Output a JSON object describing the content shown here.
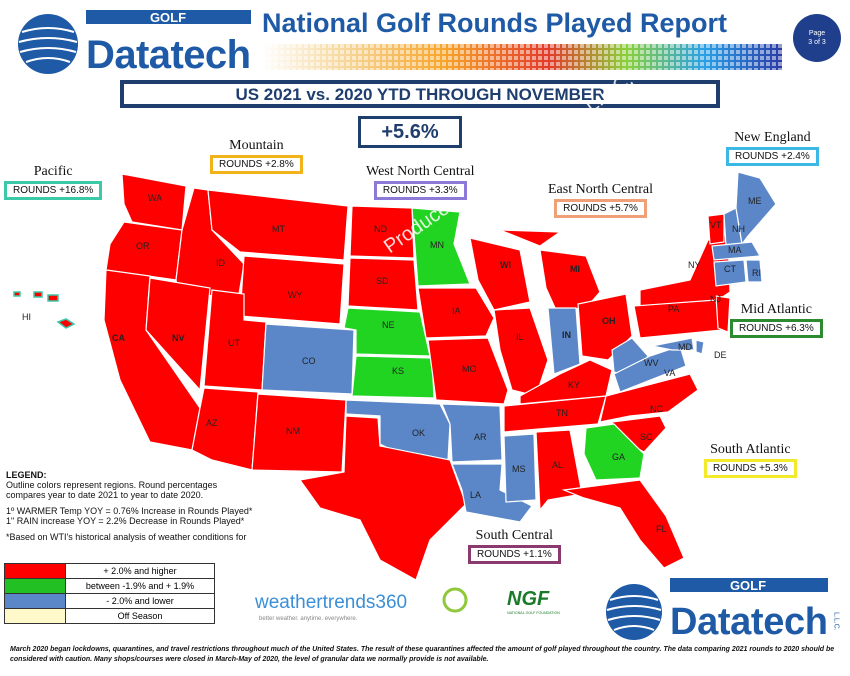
{
  "header": {
    "logo_small_text": "GOLF",
    "logo_main_text": "Datatech",
    "logo_llc": "L.L.C.",
    "title": "National Golf Rounds Played Report",
    "page_line1": "Page",
    "page_line2": "3 of 3"
  },
  "subtitle": "US 2021 vs. 2020 YTD THROUGH NOVEMBER",
  "overall_change": "+5.6%",
  "regions": {
    "pacific": {
      "name": "Pacific",
      "rounds": "ROUNDS  +16.8%",
      "color": "#3cc9a8"
    },
    "mountain": {
      "name": "Mountain",
      "rounds": "ROUNDS  +2.8%",
      "color": "#f2b21a"
    },
    "west_north_central": {
      "name": "West North Central",
      "rounds": "ROUNDS  +3.3%",
      "color": "#8d7ad8"
    },
    "east_north_central": {
      "name": "East North Central",
      "rounds": "ROUNDS  +5.7%",
      "color": "#f0a076"
    },
    "new_england": {
      "name": "New England",
      "rounds": "ROUNDS  +2.4%",
      "color": "#3bb8e6"
    },
    "mid_atlantic": {
      "name": "Mid Atlantic",
      "rounds": "ROUNDS  +6.3%",
      "color": "#2e8a2e"
    },
    "south_atlantic": {
      "name": "South Atlantic",
      "rounds": "ROUNDS  +5.3%",
      "color": "#f2ea2a"
    },
    "south_central": {
      "name": "South Central",
      "rounds": "ROUNDS  +1.1%",
      "color": "#8a3a6e"
    }
  },
  "states": {
    "WA": "WA",
    "OR": "OR",
    "CA": "CA",
    "ID": "ID",
    "NV": "NV",
    "MT": "MT",
    "WY": "WY",
    "UT": "UT",
    "CO": "CO",
    "AZ": "AZ",
    "NM": "NM",
    "ND": "ND",
    "SD": "SD",
    "NE": "NE",
    "KS": "KS",
    "MN": "MN",
    "IA": "IA",
    "MO": "MO",
    "WI": "WI",
    "MI": "MI",
    "IL": "IL",
    "IN": "IN",
    "OH": "OH",
    "KY": "KY",
    "TN": "TN",
    "OK": "OK",
    "TX": "TX",
    "AR": "AR",
    "LA": "LA",
    "MS": "MS",
    "AL": "AL",
    "GA": "GA",
    "FL": "FL",
    "SC": "SC",
    "NC": "NC",
    "VA": "VA",
    "WV": "WV",
    "MD": "MD",
    "DE": "DE",
    "PA": "PA",
    "NJ": "NJ",
    "NY": "NY",
    "CT": "CT",
    "RI": "RI",
    "MA": "MA",
    "VT": "VT",
    "NH": "NH",
    "ME": "ME",
    "HI": "HI"
  },
  "state_colors": {
    "red": "#ff0000",
    "green": "#22d422",
    "blue": "#5b87c8"
  },
  "watermark": "Produced by Golf Datatech L.L.C.",
  "legend": {
    "title": "LEGEND:",
    "line1": "Outline colors represent regions. Round percentages",
    "line2": "compares  year to date 2021 to year to date 2020.",
    "warmer": "1º WARMER Temp YOY = 0.76% Increase in Rounds Played*",
    "rain": "1\" RAIN increase YOY = 2.2% Decrease in Rounds Played*",
    "note": "*Based on WTI's historical analysis of weather conditions for",
    "rows": [
      {
        "label": "+ 2.0% and higher",
        "color": "#ff0000"
      },
      {
        "label": "between -1.9% and + 1.9%",
        "color": "#22c022"
      },
      {
        "label": "- 2.0% and lower",
        "color": "#5b87c8"
      },
      {
        "label": "Off Season",
        "color": "#fff8c8"
      }
    ]
  },
  "partners": {
    "weathertrends": "weathertrends360",
    "weathertrends_tag": "better weather. anytime. everywhere.",
    "ngf": "NGF",
    "ngf_tag": "NATIONAL GOLF FOUNDATION"
  },
  "footnote": "March 2020 began lockdowns, quarantines, and travel restrictions throughout much of the United States. The result of these quarantines affected the amount of golf played throughout the country. The data comparing 2021 rounds to 2020 should be considered with caution. Many shops/courses were closed in March-May of 2020, the level of granular data we normally provide is not available."
}
